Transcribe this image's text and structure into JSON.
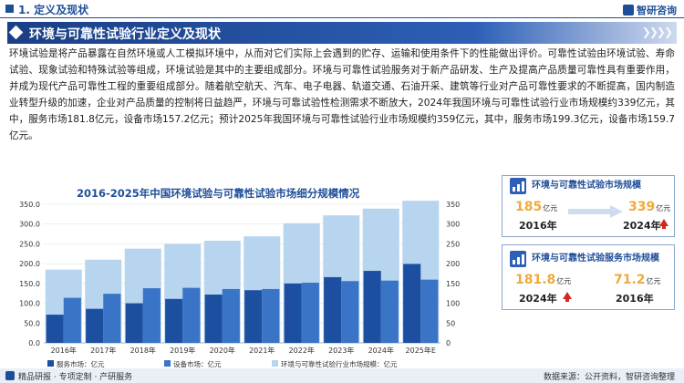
{
  "header": {
    "section": "1. 定义及现状",
    "brand": "智研咨询"
  },
  "banner": {
    "title": "环境与可靠性试验行业定义及现状"
  },
  "paragraph": "环境试验是将产品暴露在自然环境或人工模拟环境中，从而对它们实际上会遇到的贮存、运输和使用条件下的性能做出评价。可靠性试验由环境试验、寿命试验、现象试验和特殊试验等组成，环境试验是其中的主要组成部分。环境与可靠性试验服务对于新产品研发、生产及提高产品质量可靠性具有重要作用，并成为现代产品可靠性工程的重要组成部分。随着航空航天、汽车、电子电器、轨道交通、石油开采、建筑等行业对产品可靠性要求的不断提高，国内制造业转型升级的加速，企业对产品质量的控制将日益趋严，环境与可靠试验性检测需求不断放大，2024年我国环境与可靠性试验行业市场规模约339亿元，其中，服务市场181.8亿元，设备市场157.2亿元；预计2025年我国环境与可靠性试验行业市场规模约359亿元，其中，服务市场199.3亿元，设备市场159.7亿元。",
  "card1": {
    "title": "环境与可靠性试验市场规模",
    "left_value": "185",
    "left_unit": "亿元",
    "left_year": "2016年",
    "right_value": "339",
    "right_unit": "亿元",
    "right_year": "2024年"
  },
  "card2": {
    "title": "环境与可靠性试验服务市场规模",
    "left_value": "181.8",
    "left_unit": "亿元",
    "left_year": "2024年",
    "right_value": "71.2",
    "right_unit": "亿元",
    "right_year": "2016年"
  },
  "footer": {
    "left": "精品研报 · 专项定制 · 产研服务",
    "right": "数据来源：公开资料，智研咨询整理"
  },
  "colors": {
    "primary": "#1f4e99",
    "service": "#1d4fa0",
    "equipment": "#3a74c7",
    "total": "#b8d5f0",
    "accent": "#f0a93b",
    "up": "#d6271e"
  },
  "chart_data": {
    "type": "bar",
    "title": "2016-2025年中国环境试验与可靠性试验市场细分规模情况",
    "categories": [
      "2016年",
      "2017年",
      "2018年",
      "2019年",
      "2020年",
      "2021年",
      "2022年",
      "2023年",
      "2024年",
      "2025年E"
    ],
    "series": [
      {
        "name": "服务市场：亿元",
        "values": [
          71.2,
          86,
          100,
          111,
          122,
          133,
          150,
          166,
          181.8,
          199.3
        ]
      },
      {
        "name": "设备市场：亿元",
        "values": [
          113.8,
          124,
          138,
          139,
          136,
          136,
          152,
          156,
          157.2,
          159.7
        ]
      },
      {
        "name": "环境与可靠性试验行业市场规模：亿元",
        "values": [
          185,
          210,
          238,
          250,
          258,
          269,
          302,
          322,
          339,
          359
        ]
      }
    ],
    "ylim_left": [
      0,
      350
    ],
    "ylim_right": [
      0,
      350
    ],
    "yticks": [
      "0.0",
      "50.0",
      "100.0",
      "150.0",
      "200.0",
      "250.0",
      "300.0",
      "350.0"
    ],
    "yticks_right": [
      "0",
      "50",
      "100",
      "150",
      "200",
      "250",
      "300",
      "350"
    ],
    "legend_position": "bottom"
  }
}
